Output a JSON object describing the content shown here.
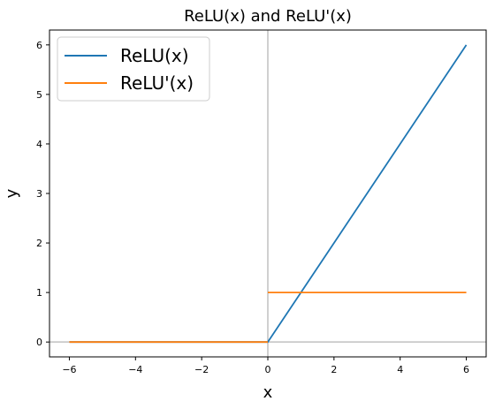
{
  "chart_data": {
    "type": "line",
    "title": "ReLU(x) and ReLU'(x)",
    "xlabel": "x",
    "ylabel": "y",
    "xlim": [
      -6.6,
      6.6
    ],
    "ylim": [
      -0.3,
      6.3
    ],
    "xticks": [
      -6,
      -4,
      -2,
      0,
      2,
      4,
      6
    ],
    "yticks": [
      0,
      1,
      2,
      3,
      4,
      5,
      6
    ],
    "xtick_labels": [
      "−6",
      "−4",
      "−2",
      "0",
      "2",
      "4",
      "6"
    ],
    "ytick_labels": [
      "0",
      "1",
      "2",
      "3",
      "4",
      "5",
      "6"
    ],
    "grid": false,
    "reference_lines": {
      "x0": 0,
      "y0": 0,
      "color": "#c0c0c0"
    },
    "legend": {
      "position": "top-left"
    },
    "series": [
      {
        "name": "ReLU(x)",
        "color": "#1f77b4",
        "points": [
          [
            -6,
            0
          ],
          [
            0,
            0
          ],
          [
            6,
            6
          ]
        ]
      },
      {
        "name": "ReLU'(x)",
        "color": "#ff7f0e",
        "segments": [
          [
            [
              -6,
              0
            ],
            [
              0,
              0
            ]
          ],
          [
            [
              0,
              1
            ],
            [
              6,
              1
            ]
          ]
        ]
      }
    ]
  }
}
